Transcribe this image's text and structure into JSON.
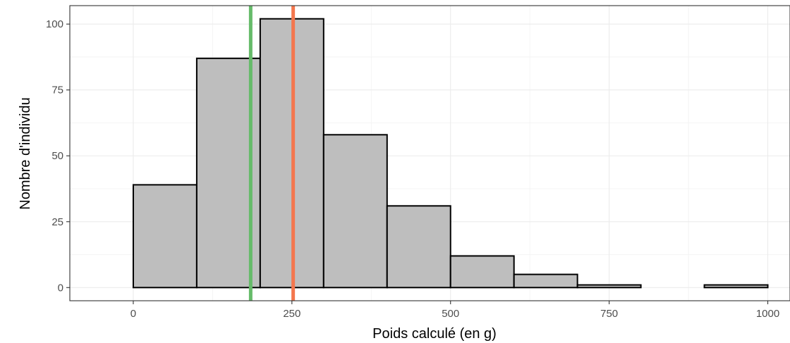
{
  "chart_data": {
    "type": "bar",
    "subtype": "histogram",
    "xlabel": "Poids calculé (en g)",
    "ylabel": "Nombre d'individu",
    "xlim": [
      -100,
      1035
    ],
    "ylim": [
      -5,
      107
    ],
    "x_ticks": [
      0,
      250,
      500,
      750,
      1000
    ],
    "x_tick_labels": [
      "0",
      "250",
      "500",
      "750",
      "1000"
    ],
    "y_ticks": [
      0,
      25,
      50,
      75,
      100
    ],
    "y_tick_labels": [
      "0",
      "25",
      "50",
      "75",
      "100"
    ],
    "bins": [
      {
        "x0": 0,
        "x1": 100,
        "count": 39
      },
      {
        "x0": 100,
        "x1": 200,
        "count": 87
      },
      {
        "x0": 200,
        "x1": 300,
        "count": 102
      },
      {
        "x0": 300,
        "x1": 400,
        "count": 58
      },
      {
        "x0": 400,
        "x1": 500,
        "count": 31
      },
      {
        "x0": 500,
        "x1": 600,
        "count": 12
      },
      {
        "x0": 600,
        "x1": 700,
        "count": 5
      },
      {
        "x0": 700,
        "x1": 800,
        "count": 1
      },
      {
        "x0": 800,
        "x1": 900,
        "count": 0
      },
      {
        "x0": 900,
        "x1": 1000,
        "count": 1
      }
    ],
    "vlines": [
      {
        "x": 185,
        "color": "#66bb6a"
      },
      {
        "x": 252,
        "color": "#f4774e"
      }
    ],
    "bar_fill": "#bebebe",
    "bar_stroke": "#000000",
    "grid": true,
    "legend": "none"
  }
}
